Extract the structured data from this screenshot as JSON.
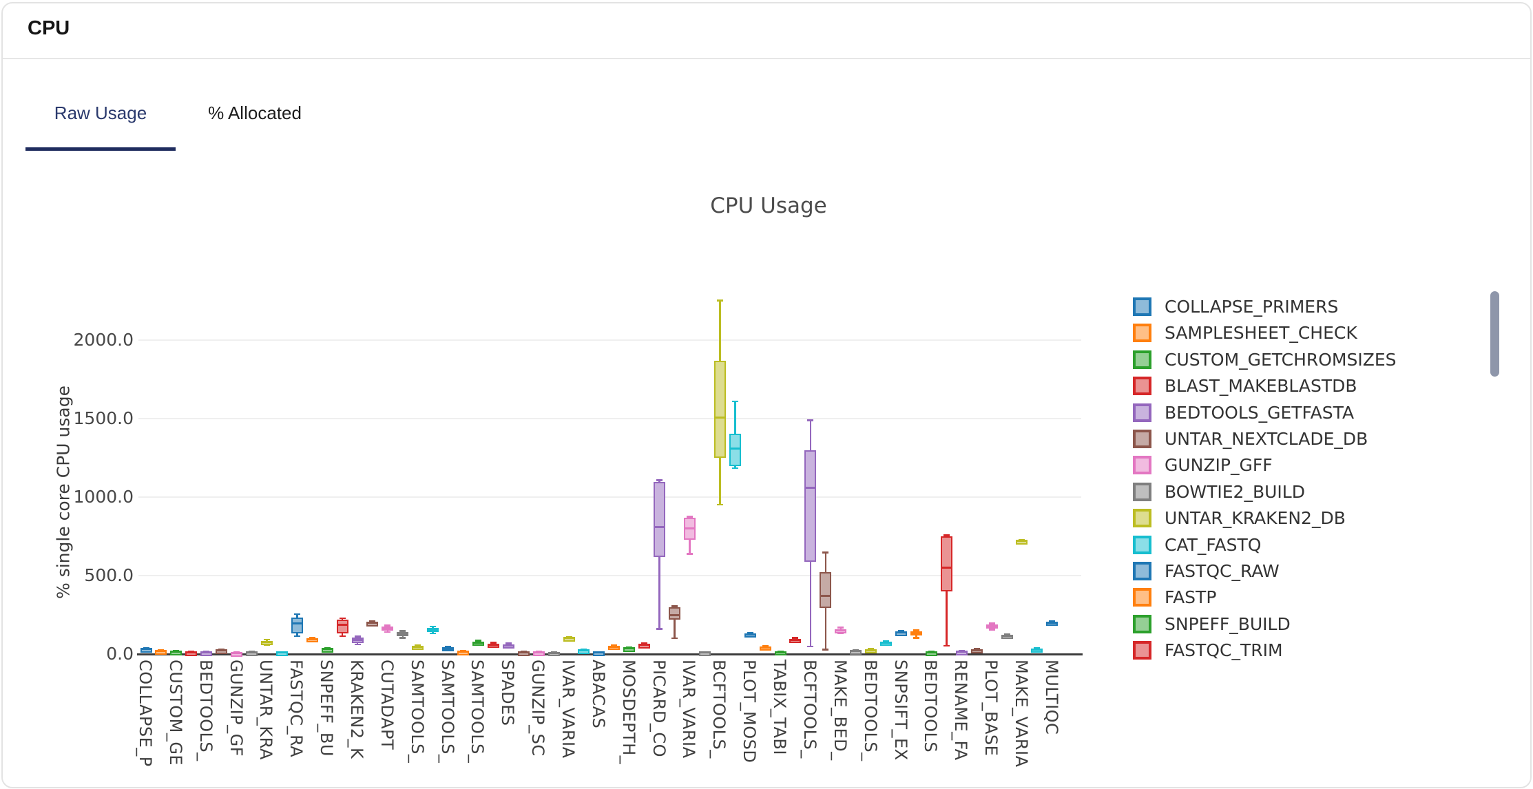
{
  "card": {
    "title": "CPU"
  },
  "tabs": [
    {
      "label": "Raw Usage",
      "active": true
    },
    {
      "label": "% Allocated",
      "active": false
    }
  ],
  "accent_colors": {
    "active_tab_text": "#2b3a6d",
    "active_tab_underline": "#1f2c5e"
  },
  "legend": {
    "items": [
      {
        "label": "COLLAPSE_PRIMERS",
        "stroke": "#1f77b4",
        "fill": "#8fbbd9"
      },
      {
        "label": "SAMPLESHEET_CHECK",
        "stroke": "#ff7f0e",
        "fill": "#ffbf86"
      },
      {
        "label": "CUSTOM_GETCHROMSIZES",
        "stroke": "#2ca02c",
        "fill": "#95cf95"
      },
      {
        "label": "BLAST_MAKEBLASTDB",
        "stroke": "#d62728",
        "fill": "#ea9393"
      },
      {
        "label": "BEDTOOLS_GETFASTA",
        "stroke": "#9467bd",
        "fill": "#c9b3de"
      },
      {
        "label": "UNTAR_NEXTCLADE_DB",
        "stroke": "#8c564b",
        "fill": "#c5aaa5"
      },
      {
        "label": "GUNZIP_GFF",
        "stroke": "#e377c2",
        "fill": "#f1bbe0"
      },
      {
        "label": "BOWTIE2_BUILD",
        "stroke": "#7f7f7f",
        "fill": "#bfbfbf"
      },
      {
        "label": "UNTAR_KRAKEN2_DB",
        "stroke": "#bcbd22",
        "fill": "#dddd90"
      },
      {
        "label": "CAT_FASTQ",
        "stroke": "#17becf",
        "fill": "#8bdee7"
      },
      {
        "label": "FASTQC_RAW",
        "stroke": "#1f77b4",
        "fill": "#8fbbd9"
      },
      {
        "label": "FASTP",
        "stroke": "#ff7f0e",
        "fill": "#ffbf86"
      },
      {
        "label": "SNPEFF_BUILD",
        "stroke": "#2ca02c",
        "fill": "#95cf95"
      },
      {
        "label": "FASTQC_TRIM",
        "stroke": "#d62728",
        "fill": "#ea9393"
      }
    ],
    "scrollbar_color": "#8e96aa"
  },
  "chart_data": {
    "type": "boxplot",
    "title": "CPU Usage",
    "xlabel": "",
    "ylabel": "% single core CPU usage",
    "ylim": [
      0,
      2320
    ],
    "yticks": [
      0,
      500,
      1000,
      1500,
      2000
    ],
    "ytick_labels": [
      "0.0",
      "500.0",
      "1000.0",
      "1500.0",
      "2000.0"
    ],
    "grid": "horizontal-only",
    "legend_position": "right-scrollable",
    "x_tick_labels": [
      "COLLAPSE_P",
      "CUSTOM_GE",
      "BEDTOOLS_",
      "GUNZIP_GF",
      "UNTAR_KRA",
      "FASTQC_RA",
      "SNPEFF_BU",
      "KRAKEN2_K",
      "CUTADAPT",
      "SAMTOOLS_",
      "SAMTOOLS_",
      "SAMTOOLS_",
      "SPADES",
      "GUNZIP_SC",
      "IVAR_VARIA",
      "ABACAS",
      "MOSDEPTH_",
      "PICARD_CO",
      "IVAR_VARIA",
      "BCFTOOLS_",
      "PLOT_MOSD",
      "TABIX_TABI",
      "BCFTOOLS_",
      "MAKE_BED_",
      "BEDTOOLS_",
      "SNPSIFT_EX",
      "BEDTOOLS",
      "RENAME_FA",
      "PLOT_BASE",
      "MAKE_VARIA",
      "MULTIQC"
    ],
    "x_tick_every_n_boxes": 2,
    "palette": [
      {
        "stroke": "#1f77b4",
        "fill": "#8fbbd9"
      },
      {
        "stroke": "#ff7f0e",
        "fill": "#ffbf86"
      },
      {
        "stroke": "#2ca02c",
        "fill": "#95cf95"
      },
      {
        "stroke": "#d62728",
        "fill": "#ea9393"
      },
      {
        "stroke": "#9467bd",
        "fill": "#c9b3de"
      },
      {
        "stroke": "#8c564b",
        "fill": "#c5aaa5"
      },
      {
        "stroke": "#e377c2",
        "fill": "#f1bbe0"
      },
      {
        "stroke": "#7f7f7f",
        "fill": "#bfbfbf"
      },
      {
        "stroke": "#bcbd22",
        "fill": "#dddd90"
      },
      {
        "stroke": "#17becf",
        "fill": "#8bdee7"
      }
    ],
    "box_color_rule": "palette[box_index % 10]",
    "boxes_five_number_lo_q1_med_q3_hi": [
      [
        20,
        26,
        31,
        36,
        40
      ],
      [
        12,
        16,
        19,
        23,
        26
      ],
      [
        9,
        12,
        15,
        18,
        21
      ],
      [
        5,
        8,
        10,
        13,
        15
      ],
      [
        5,
        8,
        11,
        13,
        16
      ],
      [
        18,
        22,
        25,
        28,
        31
      ],
      [
        4,
        6,
        8,
        10,
        12
      ],
      [
        7,
        10,
        12,
        15,
        17
      ],
      [
        58,
        66,
        76,
        85,
        92
      ],
      [
        4,
        7,
        9,
        12,
        14
      ],
      [
        114,
        131,
        197,
        232,
        254
      ],
      [
        82,
        88,
        93,
        99,
        105
      ],
      [
        24,
        28,
        31,
        34,
        38
      ],
      [
        114,
        131,
        188,
        219,
        228
      ],
      [
        62,
        70,
        88,
        104,
        112
      ],
      [
        188,
        193,
        198,
        203,
        208
      ],
      [
        140,
        148,
        164,
        176,
        183
      ],
      [
        104,
        112,
        126,
        140,
        148
      ],
      [
        33,
        38,
        45,
        51,
        56
      ],
      [
        132,
        140,
        155,
        168,
        176
      ],
      [
        24,
        28,
        35,
        42,
        47
      ],
      [
        10,
        13,
        16,
        19,
        22
      ],
      [
        58,
        64,
        72,
        80,
        86
      ],
      [
        48,
        54,
        60,
        66,
        72
      ],
      [
        42,
        48,
        55,
        62,
        68
      ],
      [
        6,
        9,
        11,
        14,
        16
      ],
      [
        6,
        8,
        11,
        13,
        16
      ],
      [
        4,
        6,
        8,
        11,
        13
      ],
      [
        92,
        97,
        101,
        106,
        110
      ],
      [
        16,
        19,
        23,
        27,
        30
      ],
      [
        5,
        7,
        9,
        12,
        14
      ],
      [
        38,
        43,
        47,
        52,
        56
      ],
      [
        28,
        32,
        36,
        40,
        44
      ],
      [
        48,
        53,
        58,
        63,
        68
      ],
      [
        160,
        618,
        810,
        1098,
        1108
      ],
      [
        101,
        219,
        248,
        298,
        305
      ],
      [
        638,
        728,
        800,
        868,
        875
      ],
      [
        4,
        6,
        9,
        11,
        14
      ],
      [
        952,
        1248,
        1505,
        1868,
        2252
      ],
      [
        1185,
        1198,
        1310,
        1402,
        1610
      ],
      [
        112,
        118,
        124,
        130,
        136
      ],
      [
        32,
        37,
        42,
        47,
        52
      ],
      [
        8,
        10,
        13,
        16,
        18
      ],
      [
        78,
        84,
        90,
        96,
        102
      ],
      [
        48,
        588,
        1060,
        1298,
        1488
      ],
      [
        28,
        292,
        372,
        522,
        648
      ],
      [
        132,
        140,
        150,
        160,
        168
      ],
      [
        14,
        17,
        20,
        24,
        27
      ],
      [
        18,
        22,
        26,
        30,
        33
      ],
      [
        60,
        65,
        71,
        77,
        82
      ],
      [
        126,
        131,
        136,
        141,
        146
      ],
      [
        102,
        118,
        132,
        144,
        152
      ],
      [
        6,
        8,
        11,
        13,
        16
      ],
      [
        52,
        398,
        552,
        748,
        756
      ],
      [
        8,
        11,
        14,
        18,
        21
      ],
      [
        18,
        22,
        26,
        30,
        34
      ],
      [
        156,
        165,
        176,
        188,
        196
      ],
      [
        108,
        112,
        116,
        121,
        125
      ],
      [
        712,
        716,
        720,
        725,
        729
      ],
      [
        22,
        26,
        30,
        34,
        38
      ],
      [
        192,
        196,
        200,
        205,
        209
      ]
    ]
  }
}
